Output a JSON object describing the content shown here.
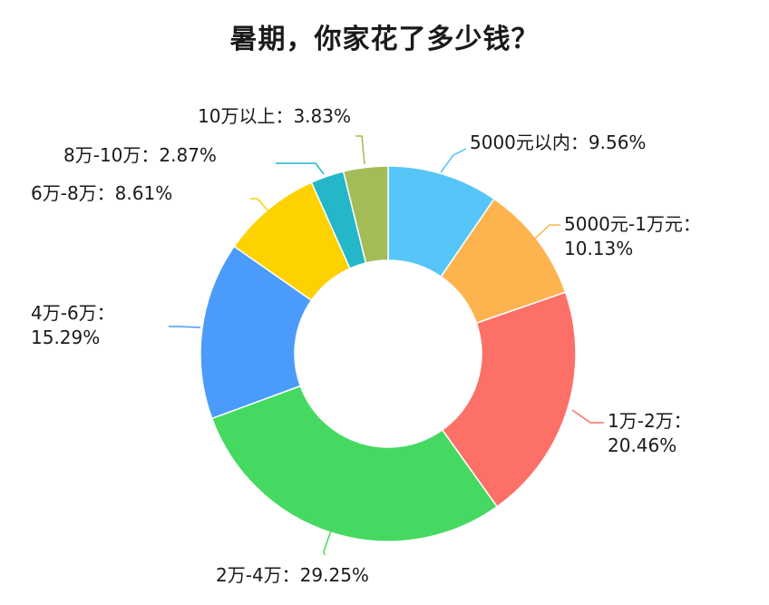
{
  "chart_data": {
    "type": "pie",
    "donut": true,
    "title": "暑期，你家花了多少钱？",
    "start_angle_deg": 0,
    "direction": "clockwise",
    "slices": [
      {
        "name": "5000元以内",
        "value": 9.56,
        "text": "5000元以内：9.56%",
        "color": "#56c5f8"
      },
      {
        "name": "5000元-1万元",
        "value": 10.13,
        "text": "5000元-1万元：",
        "text2": "10.13%",
        "color": "#fdb44f"
      },
      {
        "name": "1万-2万",
        "value": 20.46,
        "text": "1万-2万：",
        "text2": "20.46%",
        "color": "#fc7068"
      },
      {
        "name": "2万-4万",
        "value": 29.25,
        "text": "2万-4万：29.25%",
        "color": "#46d961"
      },
      {
        "name": "4万-6万",
        "value": 15.29,
        "text": "4万-6万：",
        "text2": "15.29%",
        "color": "#4b9cfa"
      },
      {
        "name": "6万-8万",
        "value": 8.61,
        "text": "6万-8万：8.61%",
        "color": "#fed100"
      },
      {
        "name": "8万-10万",
        "value": 2.87,
        "text": "8万-10万：2.87%",
        "color": "#24b6c9"
      },
      {
        "name": "10万以上",
        "value": 3.83,
        "text": "10万以上：3.83%",
        "color": "#a3bc57"
      }
    ]
  }
}
